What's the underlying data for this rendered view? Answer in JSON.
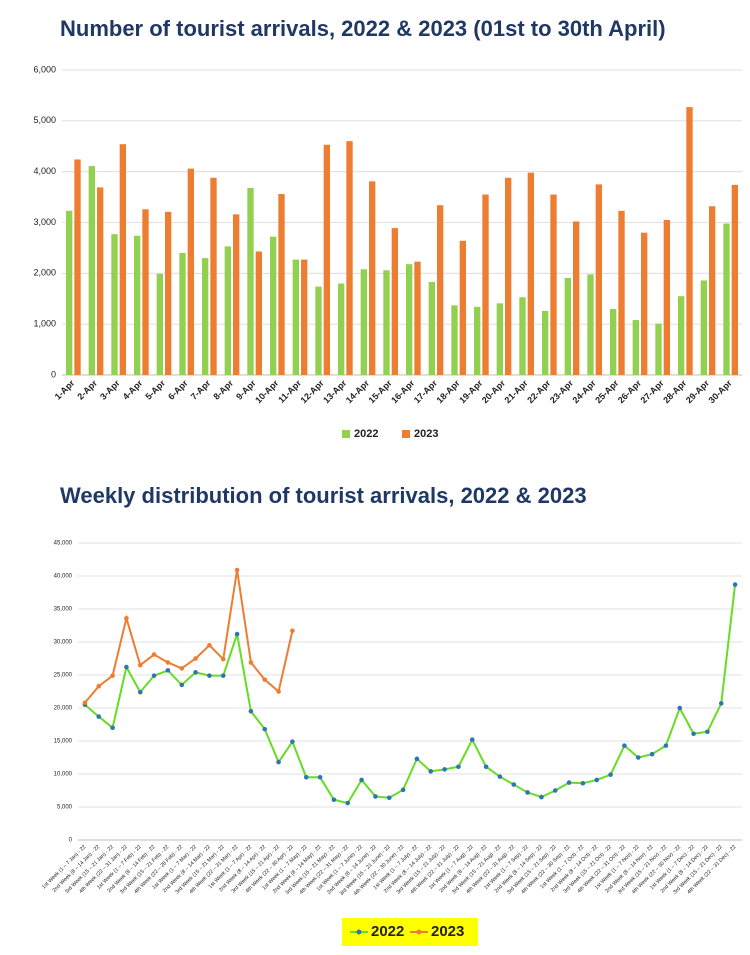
{
  "chart_data": [
    {
      "type": "bar",
      "title": "Number of tourist arrivals, 2022 & 2023 (01st to 30th April)",
      "categories": [
        "1-Apr",
        "2-Apr",
        "3-Apr",
        "4-Apr",
        "5-Apr",
        "6-Apr",
        "7-Apr",
        "8-Apr",
        "9-Apr",
        "10-Apr",
        "11-Apr",
        "12-Apr",
        "13-Apr",
        "14-Apr",
        "15-Apr",
        "16-Apr",
        "17-Apr",
        "18-Apr",
        "19-Apr",
        "20-Apr",
        "21-Apr",
        "22-Apr",
        "23-Apr",
        "24-Apr",
        "25-Apr",
        "26-Apr",
        "27-Apr",
        "28-Apr",
        "29-Apr",
        "30-Apr"
      ],
      "series": [
        {
          "name": "2022",
          "color": "#92d050",
          "values": [
            3230,
            4110,
            2770,
            2740,
            1990,
            2400,
            2300,
            2530,
            3680,
            2720,
            2270,
            1740,
            1800,
            2080,
            2060,
            2180,
            1830,
            1370,
            1340,
            1410,
            1530,
            1260,
            1910,
            1980,
            1300,
            1080,
            1010,
            1550,
            1860,
            2980
          ]
        },
        {
          "name": "2023",
          "color": "#ed7d31",
          "values": [
            4240,
            3690,
            4540,
            3260,
            3210,
            4060,
            3880,
            3160,
            2430,
            3560,
            2270,
            4530,
            4600,
            3810,
            2890,
            2230,
            3340,
            2640,
            3550,
            3880,
            3980,
            3550,
            3020,
            3750,
            3230,
            2800,
            3050,
            5270,
            3320,
            3740
          ]
        }
      ],
      "ylim": [
        0,
        6000
      ],
      "yticks": [
        0,
        {
          "value": 1000,
          "label": "1,000"
        },
        {
          "value": 2000,
          "label": "2,000"
        },
        {
          "value": 3000,
          "label": "3,000"
        },
        {
          "value": 4000,
          "label": "4,000"
        },
        {
          "value": 5000,
          "label": "5,000"
        },
        {
          "value": 6000,
          "label": "6,000"
        }
      ],
      "grid": true,
      "legend": "bottom"
    },
    {
      "type": "line",
      "title": "Weekly distribution  of tourist arrivals, 2022 & 2023",
      "categories": [
        "1st Week (1 – 7 Jan) - 22",
        "2nd Week (8 – 14 Jan) - 22",
        "3rd Week (15 – 21 Jan) - 22",
        "4th Week (22 – 31 Jan) - 22",
        "1st Week (1 – 7 Feb) - 22",
        "2nd Week (8 – 14 Feb) - 22",
        "3rd Week (15 – 21 Feb) - 22",
        "4th Week (22 – 28 Feb) - 22",
        "1st Week (1 – 7 Mar) - 22",
        "2nd Week (8 – 14 Mar) - 22",
        "3rd Week (15 – 21 Mar) - 22",
        "4th Week (22 – 31 Mar) - 22",
        "1st Week (1 – 7 Apr) - 22",
        "2nd Week (8 – 14 Apr) - 22",
        "3rd Week (15 – 21 Apr) - 22",
        "4th Week (22 – 30 Apr) - 22",
        "1st Week (1 – 7 May) - 22",
        "2nd Week (8 – 14 May) - 22",
        "3rd Week (15 – 21 May) - 22",
        "4th Week (22 – 31 May) - 22",
        "1st Week (1 – 7 June) - 22",
        "2nd Week (8 – 14 June) - 22",
        "3rd Week (15 – 21 June) - 22",
        "4th Week (22 – 30 June) - 22",
        "1st Week (1 – 7 July) - 22",
        "2nd Week (8 – 14 July) - 22",
        "3rd Week (15 – 21 July) - 22",
        "4th Week (22 – 31 July) - 22",
        "1st Week (1 – 7 Aug) - 22",
        "2nd Week (8 – 14 Aug) - 22",
        "3rd Week (15 – 21 Aug) - 22",
        "4th Week (22 – 31 Aug) - 22",
        "1st Week (1 – 7 Sep) - 22",
        "2nd Week (8 – 14 Sep) - 22",
        "3rd Week (15 – 21 Sep) - 22",
        "4th Week (22 – 30 Sep) - 22",
        "1st Week (1 – 7 Oct) - 22",
        "2nd Week (8 – 14 Oct) - 22",
        "3rd Week (15 – 21 Oct) - 22",
        "4th Week (22 – 31 Oct) - 22",
        "1st Week (1 – 7 Nov) - 22",
        "2nd Week (8 – 14 Nov) - 22",
        "3rd Week (15 – 21 Nov) - 22",
        "4th Week (22 – 30 Nov) - 22",
        "1st Week (1 – 7 Dec) - 22",
        "2nd Week (8 – 14 Dec) - 22",
        "3rd Week (15 – 21 Dec) - 22",
        "4th Week (22 – 31 Dec) - 22"
      ],
      "series": [
        {
          "name": "2022",
          "color": "#66dd22",
          "marker_color": "#2e75b6",
          "values": [
            20500,
            18700,
            17000,
            26200,
            22400,
            24900,
            25700,
            23500,
            25400,
            24900,
            24900,
            31200,
            19500,
            16800,
            11800,
            14900,
            9500,
            9500,
            6100,
            5600,
            9100,
            6600,
            6400,
            7600,
            12300,
            10400,
            10700,
            11100,
            15200,
            11100,
            9600,
            8400,
            7200,
            6500,
            7500,
            8700,
            8600,
            9100,
            9900,
            14300,
            12500,
            13000,
            14300,
            20000,
            16100,
            16400,
            20700,
            38700
          ]
        },
        {
          "name": "2023",
          "color": "#ed7d31",
          "marker_color": "#ed7d31",
          "values": [
            20800,
            23300,
            24900,
            33600,
            26500,
            28100,
            26900,
            26000,
            27500,
            29500,
            27400,
            40900,
            26900,
            24300,
            22500,
            31700,
            null,
            null,
            null,
            null,
            null,
            null,
            null,
            null,
            null,
            null,
            null,
            null,
            null,
            null,
            null,
            null,
            null,
            null,
            null,
            null,
            null,
            null,
            null,
            null,
            null,
            null,
            null,
            null,
            null,
            null,
            null,
            null
          ]
        }
      ],
      "ylim": [
        0,
        45000
      ],
      "yticks": [
        0,
        {
          "value": 5000,
          "label": "5,000"
        },
        {
          "value": 10000,
          "label": "10,000"
        },
        {
          "value": 15000,
          "label": "15,000"
        },
        {
          "value": 20000,
          "label": "20,000"
        },
        {
          "value": 25000,
          "label": "25,000"
        },
        {
          "value": 30000,
          "label": "30,000"
        },
        {
          "value": 35000,
          "label": "35,000"
        },
        {
          "value": 40000,
          "label": "40,000"
        },
        {
          "value": 45000,
          "label": "45,000"
        }
      ],
      "grid": true,
      "legend": "bottom"
    }
  ]
}
